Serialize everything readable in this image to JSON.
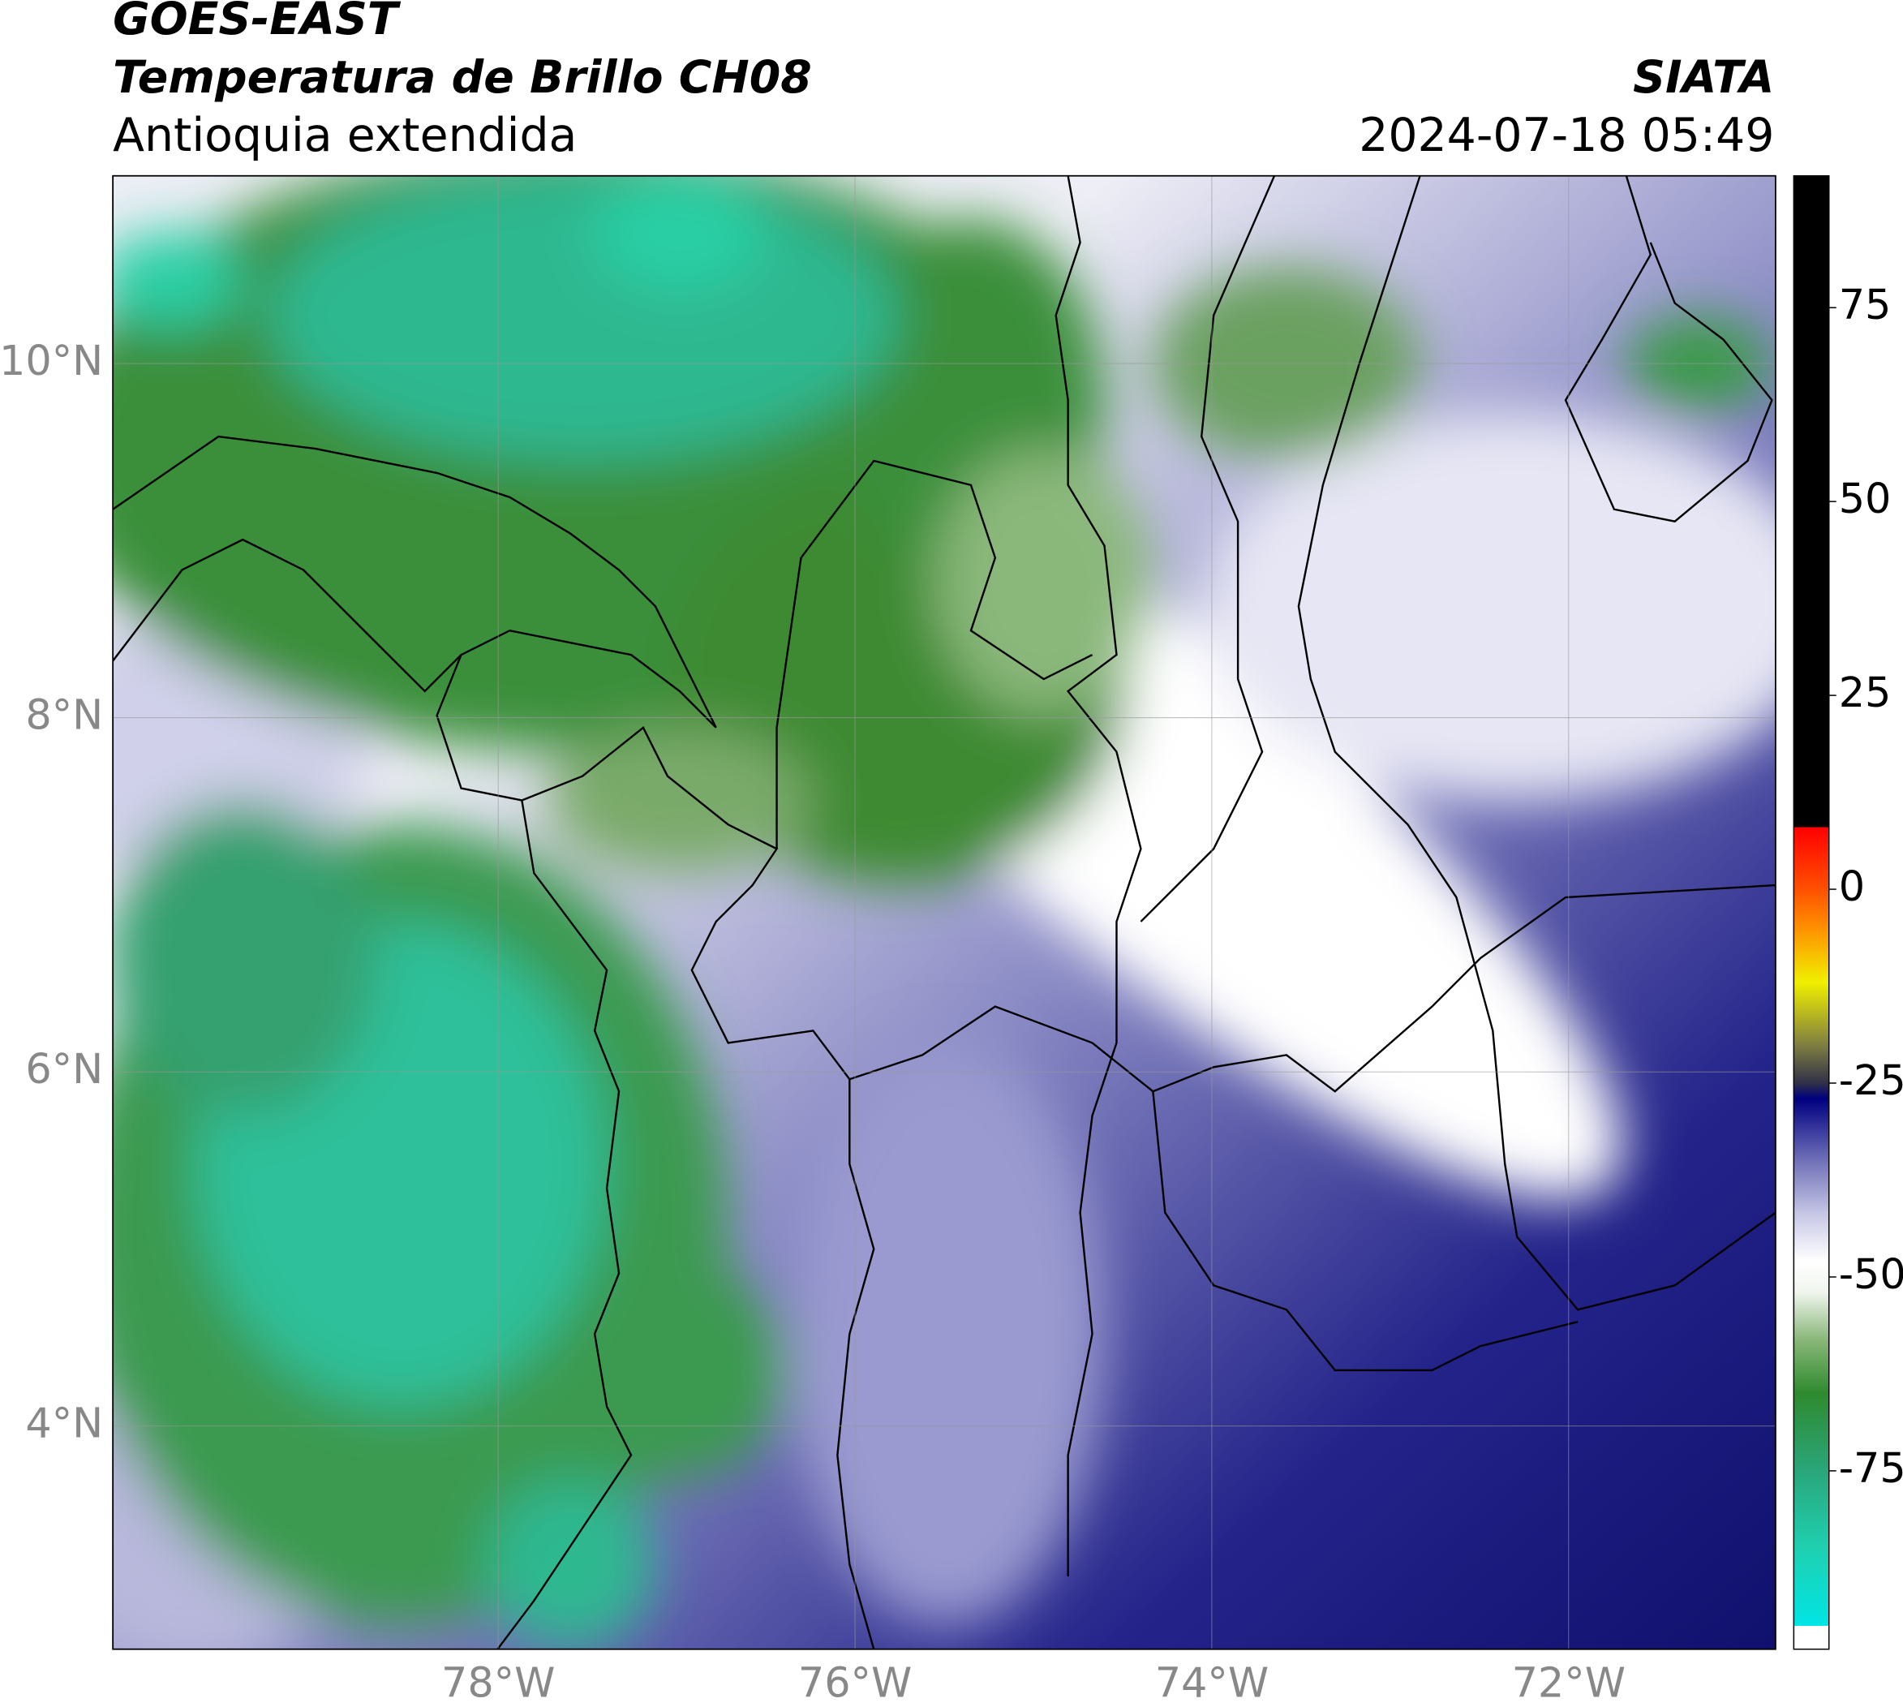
{
  "header": {
    "satellite": "GOES-EAST",
    "product": "Temperatura de Brillo CH08",
    "region": "Antioquia extendida",
    "agency": "SIATA",
    "timestamp": "2024-07-18 05:49"
  },
  "map": {
    "lon_range": [
      -80.16,
      -70.84
    ],
    "lat_range": [
      2.74,
      11.06
    ],
    "grid": true,
    "lat_ticks": [
      {
        "value": 10,
        "label": "10°N"
      },
      {
        "value": 8,
        "label": "8°N"
      },
      {
        "value": 6,
        "label": "6°N"
      },
      {
        "value": 4,
        "label": "4°N"
      }
    ],
    "lon_ticks": [
      {
        "value": -78,
        "label": "78°W"
      },
      {
        "value": -76,
        "label": "76°W"
      },
      {
        "value": -74,
        "label": "74°W"
      },
      {
        "value": -72,
        "label": "72°W"
      }
    ]
  },
  "colorbar": {
    "range": [
      -98,
      92
    ],
    "ticks": [
      75,
      50,
      25,
      0,
      -25,
      -50,
      -75
    ],
    "stops": [
      {
        "value": -98,
        "color": "#ffffff"
      },
      {
        "value": -95,
        "color": "#ffffff"
      },
      {
        "value": -95,
        "color": "#00e5e5"
      },
      {
        "value": -85,
        "color": "#1fd0b0"
      },
      {
        "value": -75,
        "color": "#2aa67a"
      },
      {
        "value": -65,
        "color": "#2e8a2e"
      },
      {
        "value": -58,
        "color": "#8ab87a"
      },
      {
        "value": -52,
        "color": "#f0f5ee"
      },
      {
        "value": -48,
        "color": "#ffffff"
      },
      {
        "value": -42,
        "color": "#c8c8e6"
      },
      {
        "value": -35,
        "color": "#7070b8"
      },
      {
        "value": -30,
        "color": "#2a2a96"
      },
      {
        "value": -27,
        "color": "#000080"
      },
      {
        "value": -25,
        "color": "#303048"
      },
      {
        "value": -20,
        "color": "#808040"
      },
      {
        "value": -12,
        "color": "#f0f000"
      },
      {
        "value": -5,
        "color": "#ff9000"
      },
      {
        "value": 0,
        "color": "#ff5000"
      },
      {
        "value": 8,
        "color": "#ff0000"
      },
      {
        "value": 8,
        "color": "#000000"
      },
      {
        "value": 92,
        "color": "#000000"
      }
    ]
  }
}
